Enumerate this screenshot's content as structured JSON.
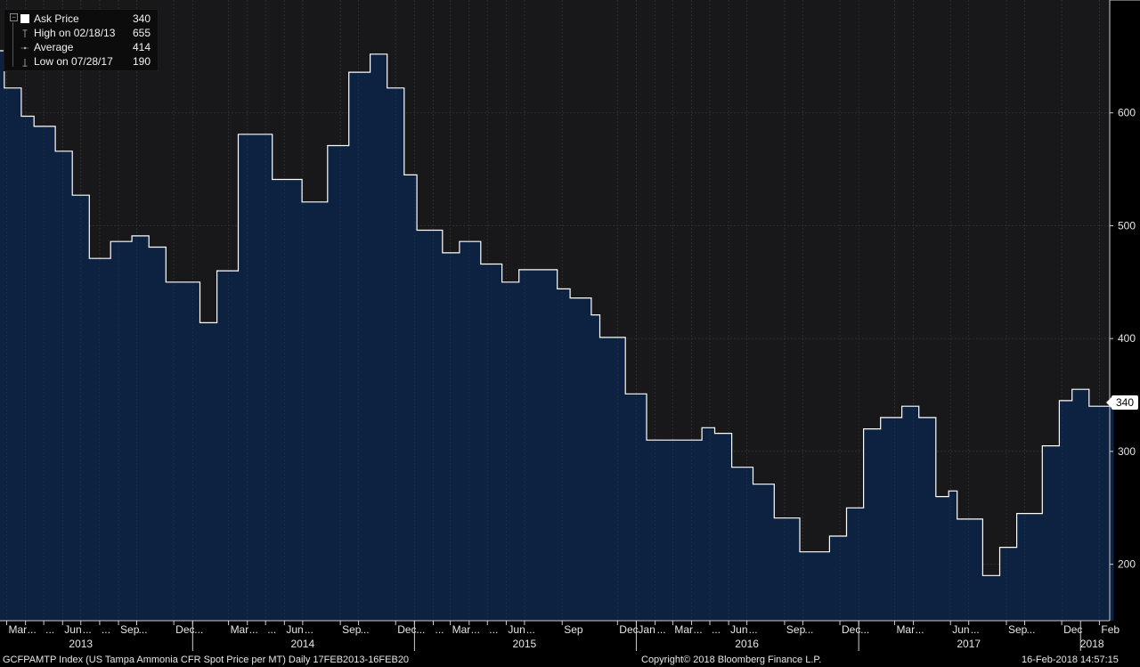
{
  "chart_data": {
    "type": "area",
    "series": [
      {
        "name": "Ask Price",
        "points": [
          [
            "2013-02-18",
            655
          ],
          [
            "2013-02-25",
            622
          ],
          [
            "2013-03-25",
            597
          ],
          [
            "2013-04-15",
            588
          ],
          [
            "2013-05-20",
            566
          ],
          [
            "2013-06-17",
            527
          ],
          [
            "2013-07-15",
            471
          ],
          [
            "2013-08-19",
            486
          ],
          [
            "2013-09-23",
            491
          ],
          [
            "2013-10-21",
            481
          ],
          [
            "2013-11-18",
            450
          ],
          [
            "2014-01-13",
            414
          ],
          [
            "2014-02-10",
            460
          ],
          [
            "2014-03-17",
            581
          ],
          [
            "2014-05-12",
            541
          ],
          [
            "2014-06-30",
            521
          ],
          [
            "2014-08-11",
            571
          ],
          [
            "2014-09-15",
            636
          ],
          [
            "2014-10-20",
            652
          ],
          [
            "2014-11-17",
            622
          ],
          [
            "2014-12-15",
            545
          ],
          [
            "2015-01-05",
            496
          ],
          [
            "2015-02-16",
            476
          ],
          [
            "2015-03-16",
            486
          ],
          [
            "2015-04-20",
            466
          ],
          [
            "2015-05-25",
            450
          ],
          [
            "2015-06-22",
            461
          ],
          [
            "2015-08-24",
            444
          ],
          [
            "2015-09-14",
            436
          ],
          [
            "2015-10-19",
            421
          ],
          [
            "2015-11-02",
            401
          ],
          [
            "2015-12-14",
            351
          ],
          [
            "2016-01-18",
            310
          ],
          [
            "2016-04-18",
            321
          ],
          [
            "2016-05-09",
            316
          ],
          [
            "2016-06-06",
            286
          ],
          [
            "2016-07-11",
            271
          ],
          [
            "2016-08-15",
            241
          ],
          [
            "2016-09-26",
            211
          ],
          [
            "2016-11-14",
            225
          ],
          [
            "2016-12-12",
            250
          ],
          [
            "2017-01-09",
            320
          ],
          [
            "2017-02-06",
            330
          ],
          [
            "2017-03-13",
            340
          ],
          [
            "2017-04-10",
            330
          ],
          [
            "2017-05-08",
            260
          ],
          [
            "2017-05-29",
            265
          ],
          [
            "2017-06-12",
            240
          ],
          [
            "2017-07-24",
            190
          ],
          [
            "2017-08-21",
            215
          ],
          [
            "2017-09-18",
            245
          ],
          [
            "2017-10-30",
            305
          ],
          [
            "2017-11-27",
            345
          ],
          [
            "2017-12-18",
            355
          ],
          [
            "2018-01-15",
            340
          ],
          [
            "2018-02-16",
            340
          ]
        ]
      }
    ],
    "ylim": [
      150,
      700
    ],
    "yticks": [
      200,
      300,
      400,
      500,
      600
    ],
    "xlim": [
      "2013-02-18",
      "2018-02-18"
    ],
    "grid": true,
    "legend_placement": "top-left",
    "month_labels": [
      [
        "2013-03-01",
        "Mar"
      ],
      [
        "2013-04-01",
        "..."
      ],
      [
        "2013-05-01",
        "..."
      ],
      [
        "2013-06-01",
        "Jun"
      ],
      [
        "2013-07-01",
        "..."
      ],
      [
        "2013-08-01",
        "..."
      ],
      [
        "2013-09-01",
        "Sep"
      ],
      [
        "2013-10-01",
        "..."
      ],
      [
        "2013-12-01",
        "Dec"
      ],
      [
        "2014-01-01",
        "..."
      ],
      [
        "2014-03-01",
        "Mar"
      ],
      [
        "2014-04-01",
        "..."
      ],
      [
        "2014-05-01",
        "..."
      ],
      [
        "2014-06-01",
        "Jun"
      ],
      [
        "2014-07-01",
        "..."
      ],
      [
        "2014-09-01",
        "Sep"
      ],
      [
        "2014-10-01",
        "..."
      ],
      [
        "2014-12-01",
        "Dec"
      ],
      [
        "2015-01-01",
        "..."
      ],
      [
        "2015-02-01",
        "..."
      ],
      [
        "2015-03-01",
        "Mar"
      ],
      [
        "2015-04-01",
        "..."
      ],
      [
        "2015-05-01",
        "..."
      ],
      [
        "2015-06-01",
        "Jun"
      ],
      [
        "2015-07-01",
        "..."
      ],
      [
        "2015-09-01",
        "Sep"
      ],
      [
        "2015-12-01",
        "Dec"
      ],
      [
        "2016-01-01",
        "Jan"
      ],
      [
        "2016-02-01",
        "..."
      ],
      [
        "2016-03-01",
        "Mar"
      ],
      [
        "2016-04-01",
        "..."
      ],
      [
        "2016-05-01",
        "..."
      ],
      [
        "2016-06-01",
        "Jun"
      ],
      [
        "2016-07-01",
        "..."
      ],
      [
        "2016-09-01",
        "Sep"
      ],
      [
        "2016-10-01",
        "..."
      ],
      [
        "2016-12-01",
        "Dec"
      ],
      [
        "2017-01-01",
        "..."
      ],
      [
        "2017-03-01",
        "Mar"
      ],
      [
        "2017-04-01",
        "..."
      ],
      [
        "2017-06-01",
        "Jun"
      ],
      [
        "2017-07-01",
        "..."
      ],
      [
        "2017-09-01",
        "Sep"
      ],
      [
        "2017-10-01",
        "..."
      ],
      [
        "2017-12-01",
        "Dec"
      ],
      [
        "2018-02-01",
        "Feb"
      ]
    ],
    "year_labels": [
      [
        "2013-07-01",
        "2013"
      ],
      [
        "2014-07-01",
        "2014"
      ],
      [
        "2015-07-01",
        "2015"
      ],
      [
        "2016-07-01",
        "2016"
      ],
      [
        "2017-07-01",
        "2017"
      ],
      [
        "2018-01-20",
        "2018"
      ]
    ],
    "year_separators": [
      "2014-01-01",
      "2015-01-01",
      "2016-01-01",
      "2017-01-01",
      "2018-01-01"
    ]
  },
  "legend": {
    "rows": [
      {
        "label": "Ask Price",
        "value": "340"
      },
      {
        "label": "High on 02/18/13",
        "value": "655"
      },
      {
        "label": "Average",
        "value": "414"
      },
      {
        "label": "Low on 07/28/17",
        "value": "190"
      }
    ]
  },
  "last_value_badge": "340",
  "footer": {
    "index": "GCFPAMTP Index (US Tampa Ammonia CFR Spot Price per MT)  Daily 17FEB2013-16FEB20",
    "copyright": "Copyright© 2018 Bloomberg Finance L.P.",
    "timestamp": "16-Feb-2018 14:57:15"
  },
  "colors": {
    "background": "#000000",
    "plot_background": "#18181b",
    "area_fill": "#0d2240",
    "line": "#ffffff",
    "grid": "#3a3a3e"
  }
}
